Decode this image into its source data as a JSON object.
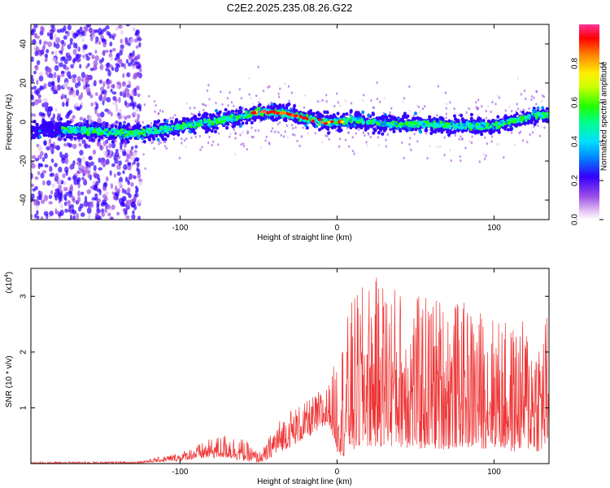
{
  "title": "C2E2.2025.235.08.26.G22",
  "chart_data": [
    {
      "type": "heatmap",
      "xlabel": "Height of straight line (km)",
      "ylabel": "Frequency (Hz)",
      "xlim": [
        -195,
        135
      ],
      "ylim": [
        -50,
        50
      ],
      "xticks": [
        -100,
        0,
        100
      ],
      "yticks": [
        -40,
        -20,
        0,
        20,
        40
      ],
      "grid": false,
      "ridge": {
        "x": [
          -195,
          -170,
          -150,
          -130,
          -110,
          -90,
          -75,
          -60,
          -50,
          -40,
          -30,
          -20,
          -10,
          0,
          10,
          20,
          30,
          40,
          50,
          60,
          70,
          80,
          90,
          100,
          110,
          120,
          130,
          135
        ],
        "y": [
          -4,
          -4,
          -5,
          -6,
          -4,
          -1,
          1,
          3,
          5,
          5,
          4,
          2,
          0,
          0,
          1,
          0,
          -1,
          -1,
          -1,
          -1,
          -2,
          -2,
          -2,
          -2,
          0,
          2,
          4,
          3
        ]
      },
      "colorbar": {
        "label": "Normalized spectral amplitude",
        "ticks": [
          "0.0",
          "0.2",
          "0.4",
          "0.6",
          "0.8"
        ],
        "range": [
          0,
          1
        ]
      }
    },
    {
      "type": "line",
      "xlabel": "Height of straight line (km)",
      "ylabel": "SNR (10 * v/v)",
      "scale_label": "(x10",
      "scale_exp": "4",
      "scale_close": ")",
      "xlim": [
        -195,
        135
      ],
      "ylim": [
        0,
        3.5
      ],
      "xticks": [
        -100,
        0,
        100
      ],
      "yticks": [
        1,
        2,
        3
      ],
      "color": "#ee3333",
      "envelope": {
        "x": [
          -195,
          -130,
          -120,
          -100,
          -90,
          -80,
          -70,
          -60,
          -50,
          -45,
          -40,
          -30,
          -20,
          -10,
          -5,
          0,
          5,
          10,
          20,
          30,
          40,
          50,
          60,
          70,
          80,
          90,
          100,
          110,
          120,
          130,
          135
        ],
        "low": [
          0.0,
          0.0,
          0.02,
          0.05,
          0.08,
          0.1,
          0.1,
          0.05,
          0.02,
          0.05,
          0.15,
          0.3,
          0.45,
          0.6,
          0.7,
          0.2,
          0.1,
          0.2,
          0.3,
          0.3,
          0.3,
          0.25,
          0.25,
          0.25,
          0.3,
          0.25,
          0.3,
          0.2,
          0.25,
          0.2,
          0.3
        ],
        "high": [
          0.03,
          0.04,
          0.08,
          0.2,
          0.33,
          0.45,
          0.55,
          0.45,
          0.2,
          0.35,
          0.7,
          1.0,
          1.1,
          1.35,
          1.45,
          2.0,
          2.5,
          3.0,
          3.3,
          3.4,
          3.2,
          3.0,
          3.1,
          3.0,
          2.9,
          2.8,
          2.7,
          2.5,
          2.6,
          2.5,
          2.9
        ]
      }
    }
  ]
}
